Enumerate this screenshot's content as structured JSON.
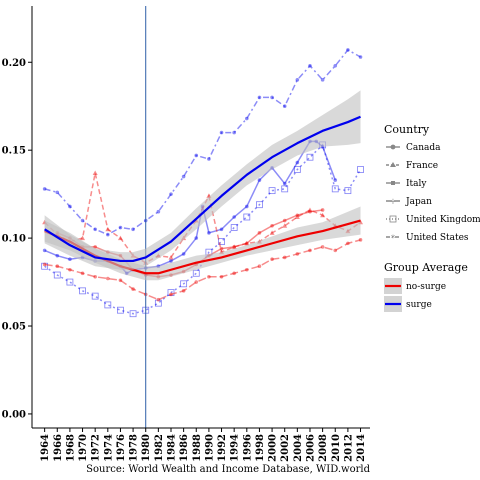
{
  "chart_data": {
    "type": "line",
    "caption": "Source: World Wealth and Income Database, WID.world",
    "x_ticks": [
      "1964",
      "1966",
      "1968",
      "1970",
      "1972",
      "1974",
      "1976",
      "1978",
      "1980",
      "1982",
      "1984",
      "1986",
      "1988",
      "1990",
      "1992",
      "1994",
      "1996",
      "1998",
      "2000",
      "2002",
      "2004",
      "2006",
      "2008",
      "2010",
      "2012",
      "2014"
    ],
    "y_ticks": [
      "0.00",
      "0.05",
      "0.10",
      "0.15",
      "0.20"
    ],
    "xlim": [
      1962,
      2015.5
    ],
    "ylim": [
      -0.008,
      0.232
    ],
    "reference_line_x": 1980,
    "grid": false,
    "legend_position": "right",
    "legends": [
      {
        "title": "Country",
        "entries": [
          "Canada",
          "France",
          "Italy",
          "Japan",
          "United Kingdom",
          "United States"
        ]
      },
      {
        "title": "Group Average",
        "entries": [
          "no-surge",
          "surge"
        ]
      }
    ],
    "colors": {
      "surge": "#0000ee",
      "no_surge": "#ee0000",
      "band": "#bfbfbf",
      "ref_line": "#2f5fa8"
    },
    "series": [
      {
        "country": "Canada",
        "group": "surge",
        "x": [
          1964,
          1966,
          1968,
          1970,
          1972,
          1974,
          1976,
          1977,
          1978,
          1980,
          1982,
          1984,
          1986,
          1988,
          1989,
          1990,
          1992,
          1994,
          1996,
          1998,
          2000,
          2002,
          2004,
          2006,
          2007,
          2008,
          2010
        ],
        "y": [
          0.093,
          0.09,
          0.088,
          0.089,
          0.087,
          0.087,
          0.084,
          0.08,
          0.082,
          0.083,
          0.084,
          0.087,
          0.091,
          0.1,
          0.118,
          0.103,
          0.105,
          0.112,
          0.118,
          0.133,
          0.14,
          0.131,
          0.143,
          0.155,
          0.155,
          0.152,
          0.133
        ]
      },
      {
        "country": "United Kingdom",
        "group": "surge",
        "x": [
          1964,
          1966,
          1968,
          1970,
          1972,
          1974,
          1976,
          1978,
          1980,
          1982,
          1984,
          1986,
          1988,
          1990,
          1992,
          1994,
          1996,
          1998,
          2000,
          2002,
          2004,
          2006,
          2008,
          2010,
          2012,
          2014
        ],
        "y": [
          0.084,
          0.079,
          0.075,
          0.07,
          0.067,
          0.062,
          0.059,
          0.057,
          0.059,
          0.063,
          0.069,
          0.074,
          0.08,
          0.092,
          0.098,
          0.106,
          0.112,
          0.119,
          0.127,
          0.128,
          0.139,
          0.146,
          0.153,
          0.128,
          0.127,
          0.139
        ]
      },
      {
        "country": "United States",
        "group": "surge",
        "x": [
          1964,
          1966,
          1968,
          1970,
          1972,
          1974,
          1976,
          1978,
          1980,
          1982,
          1984,
          1986,
          1988,
          1990,
          1992,
          1994,
          1996,
          1998,
          2000,
          2002,
          2004,
          2006,
          2008,
          2010,
          2012,
          2014
        ],
        "y": [
          0.128,
          0.126,
          0.118,
          0.11,
          0.105,
          0.102,
          0.106,
          0.105,
          0.11,
          0.115,
          0.125,
          0.135,
          0.147,
          0.145,
          0.16,
          0.16,
          0.168,
          0.18,
          0.18,
          0.175,
          0.19,
          0.198,
          0.19,
          0.198,
          0.207,
          0.203
        ]
      },
      {
        "country": "France",
        "group": "no-surge",
        "x": [
          1964,
          1966,
          1968,
          1970,
          1972,
          1974,
          1976,
          1978,
          1980,
          1982,
          1984,
          1986,
          1988,
          1990,
          1992,
          1994,
          1996,
          1998,
          2000,
          2002,
          2004,
          2006,
          2008,
          2010,
          2012,
          2014
        ],
        "y": [
          0.109,
          0.102,
          0.098,
          0.1,
          0.137,
          0.105,
          0.1,
          0.09,
          0.086,
          0.09,
          0.089,
          0.1,
          0.11,
          0.124,
          0.092,
          0.095,
          0.097,
          0.098,
          0.103,
          0.107,
          0.112,
          0.116,
          0.113,
          0.107,
          0.104,
          0.109
        ]
      },
      {
        "country": "Italy",
        "group": "no-surge",
        "x": [
          1966,
          1968,
          1970,
          1972,
          1974,
          1976,
          1978,
          1980,
          1982,
          1984,
          1986,
          1988,
          1990,
          1992,
          1994,
          1996,
          1998,
          2000,
          2002,
          2004,
          2006,
          2008
        ],
        "y": [
          0.103,
          0.1,
          0.095,
          0.095,
          0.092,
          0.09,
          0.082,
          0.079,
          0.078,
          0.079,
          0.081,
          0.085,
          0.09,
          0.094,
          0.095,
          0.097,
          0.103,
          0.107,
          0.11,
          0.113,
          0.115,
          0.116
        ]
      },
      {
        "country": "Japan",
        "group": "no-surge",
        "x": [
          1964,
          1966,
          1968,
          1970,
          1972,
          1974,
          1976,
          1978,
          1980,
          1982,
          1984,
          1986,
          1988,
          1990,
          1992,
          1994,
          1996,
          1998,
          2000,
          2002,
          2004,
          2006,
          2008,
          2010,
          2012,
          2014
        ],
        "y": [
          0.085,
          0.084,
          0.082,
          0.08,
          0.078,
          0.077,
          0.076,
          0.071,
          0.068,
          0.065,
          0.068,
          0.07,
          0.075,
          0.078,
          0.078,
          0.08,
          0.082,
          0.084,
          0.088,
          0.089,
          0.091,
          0.093,
          0.095,
          0.093,
          0.097,
          0.099
        ]
      }
    ],
    "group_averages": [
      {
        "name": "no-surge",
        "x": [
          1964,
          1968,
          1972,
          1976,
          1980,
          1982,
          1984,
          1988,
          1992,
          1996,
          2000,
          2004,
          2008,
          2012,
          2014
        ],
        "y": [
          0.104,
          0.098,
          0.09,
          0.084,
          0.08,
          0.08,
          0.082,
          0.086,
          0.089,
          0.093,
          0.097,
          0.101,
          0.104,
          0.108,
          0.11
        ],
        "lower": [
          0.098,
          0.093,
          0.086,
          0.08,
          0.076,
          0.076,
          0.078,
          0.082,
          0.086,
          0.09,
          0.093,
          0.096,
          0.099,
          0.101,
          0.102
        ],
        "upper": [
          0.11,
          0.103,
          0.094,
          0.088,
          0.084,
          0.084,
          0.086,
          0.09,
          0.092,
          0.096,
          0.101,
          0.106,
          0.109,
          0.115,
          0.118
        ]
      },
      {
        "name": "surge",
        "x": [
          1964,
          1968,
          1972,
          1976,
          1978,
          1980,
          1984,
          1988,
          1992,
          1996,
          2000,
          2004,
          2008,
          2012,
          2014
        ],
        "y": [
          0.105,
          0.096,
          0.089,
          0.087,
          0.087,
          0.089,
          0.098,
          0.111,
          0.124,
          0.136,
          0.146,
          0.154,
          0.161,
          0.166,
          0.169
        ],
        "lower": [
          0.097,
          0.09,
          0.084,
          0.082,
          0.082,
          0.084,
          0.093,
          0.105,
          0.118,
          0.13,
          0.139,
          0.147,
          0.152,
          0.153,
          0.154
        ],
        "upper": [
          0.113,
          0.102,
          0.094,
          0.092,
          0.092,
          0.094,
          0.103,
          0.117,
          0.13,
          0.142,
          0.153,
          0.161,
          0.17,
          0.179,
          0.184
        ]
      }
    ]
  }
}
